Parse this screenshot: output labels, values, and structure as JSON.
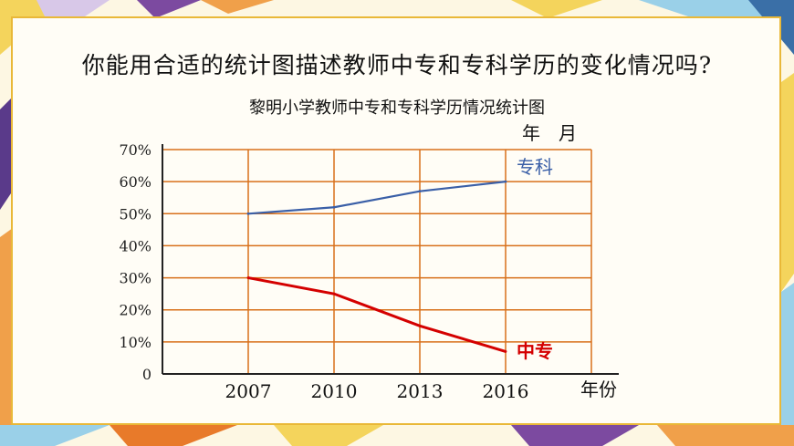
{
  "question": "你能用合适的统计图描述教师中专和专科学历的变化情况吗?",
  "colors": {
    "grid": "#d8701a",
    "axis": "#222222",
    "series_a": "#3a5fa7",
    "series_b": "#d40000",
    "frame": "#e9b838"
  },
  "chart_data": {
    "type": "line",
    "title": "黎明小学教师中专和专科学历情况统计图",
    "unit_label": "年　月",
    "xlabel": "年份",
    "ylabel": "",
    "categories": [
      "2007",
      "2010",
      "2013",
      "2016"
    ],
    "y_ticks": [
      "0",
      "10%",
      "20%",
      "30%",
      "40%",
      "50%",
      "60%",
      "70%"
    ],
    "ylim": [
      0,
      70
    ],
    "grid": true,
    "series": [
      {
        "name": "专科",
        "values": [
          50,
          52,
          57,
          60
        ]
      },
      {
        "name": "中专",
        "values": [
          30,
          25,
          15,
          7
        ]
      }
    ]
  }
}
